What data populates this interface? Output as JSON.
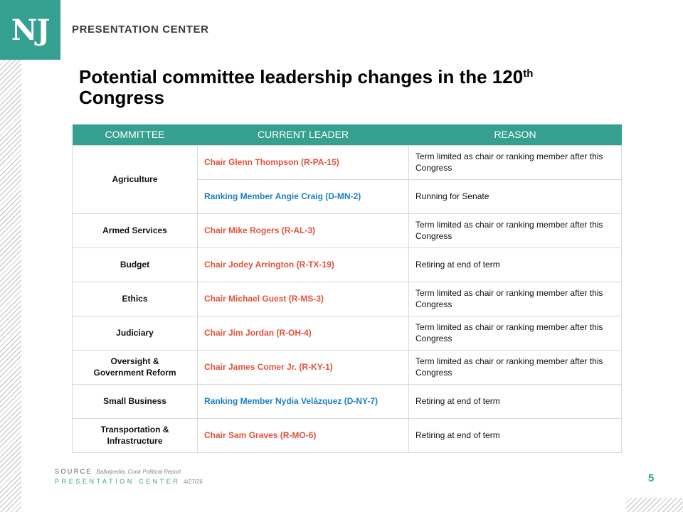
{
  "logo": {
    "text": "NJ"
  },
  "brand": "PRESENTATION CENTER",
  "title": {
    "before": "Potential committee leadership changes in the 120",
    "sup": "th",
    "after": " Congress"
  },
  "table": {
    "headers": [
      "COMMITTEE",
      "CURRENT LEADER",
      "REASON"
    ],
    "rows": [
      {
        "committee": "Agriculture",
        "leader": "Chair Glenn Thompson (R-PA-15)",
        "reason": "Term limited as chair or ranking member after this Congress"
      },
      {
        "leader": "Ranking Member Angie Craig (D-MN-2)",
        "reason": "Running for Senate"
      },
      {
        "committee": "Armed Services",
        "leader": "Chair Mike Rogers (R-AL-3)",
        "reason": "Term limited as chair or ranking member after this Congress"
      },
      {
        "committee": "Budget",
        "leader": "Chair Jodey Arrington (R-TX-19)",
        "reason": "Retiring at end of term"
      },
      {
        "committee": "Ethics",
        "leader": "Chair Michael Guest (R-MS-3)",
        "reason": "Term limited as chair or ranking member after this Congress"
      },
      {
        "committee": "Judiciary",
        "leader": "Chair Jim Jordan (R-OH-4)",
        "reason": "Term limited as chair or ranking member after this Congress"
      },
      {
        "committee": "Oversight & Government Reform",
        "leader": "Chair James Comer Jr. (R-KY-1)",
        "reason": "Term limited as chair or ranking member after this Congress"
      },
      {
        "committee": "Small Business",
        "leader": "Ranking Member Nydia Velázquez (D-NY-7)",
        "reason": "Retiring at end of term"
      },
      {
        "committee": "Transportation & Infrastructure",
        "leader": "Chair Sam Graves (R-MO-6)",
        "reason": "Retiring at end of term"
      }
    ]
  },
  "colors": {
    "accent": "#35a08f",
    "republican": "#e2523c",
    "democrat": "#1b7fc4"
  },
  "footer": {
    "source_label": "SOURCE",
    "source_value": "Ballotpedia, Cook Political Report",
    "center_label": "PRESENTATION CENTER",
    "date": "4/27/26",
    "page": "5"
  }
}
